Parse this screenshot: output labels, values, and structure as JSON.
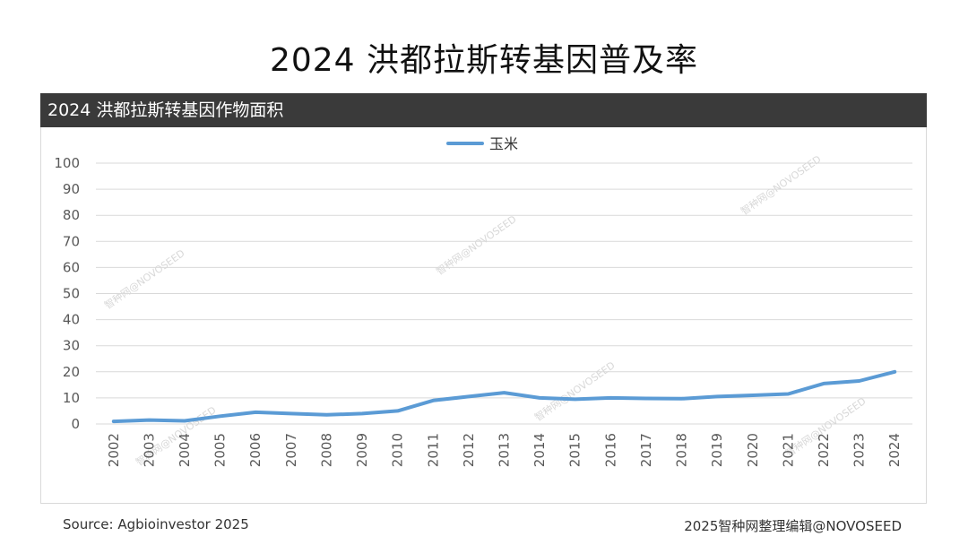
{
  "page": {
    "title": "2024 洪都拉斯转基因普及率"
  },
  "section": {
    "title": "2024 洪都拉斯转基因作物面积"
  },
  "footer": {
    "source": "Source: Agbioinvestor 2025",
    "credit": "2025智种网整理编辑@NOVOSEED"
  },
  "watermark": "智种网@NOVOSEED",
  "chart_data": {
    "type": "line",
    "title": "",
    "xlabel": "",
    "ylabel": "",
    "categories": [
      "2002",
      "2003",
      "2004",
      "2005",
      "2006",
      "2007",
      "2008",
      "2009",
      "2010",
      "2011",
      "2012",
      "2013",
      "2014",
      "2015",
      "2016",
      "2017",
      "2018",
      "2019",
      "2020",
      "2021",
      "2022",
      "2023",
      "2024"
    ],
    "series": [
      {
        "name": "玉米",
        "color": "#5b9bd5",
        "values": [
          1,
          1.5,
          1.2,
          3,
          4.5,
          4,
          3.5,
          4,
          5,
          9,
          10.5,
          12,
          10,
          9.5,
          10,
          9.8,
          9.7,
          10.5,
          11,
          11.5,
          15.5,
          16.5,
          20
        ]
      }
    ],
    "ylim": [
      0,
      100
    ],
    "yticks": [
      0,
      10,
      20,
      30,
      40,
      50,
      60,
      70,
      80,
      90,
      100
    ],
    "grid": true,
    "legend": "top-center",
    "gridColor": "#d9d9d9"
  }
}
